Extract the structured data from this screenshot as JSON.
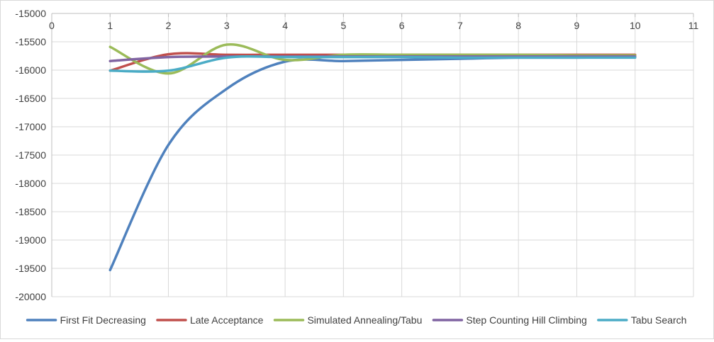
{
  "chart_data": {
    "type": "line",
    "title": "",
    "xlabel": "",
    "ylabel": "",
    "xlim": [
      0,
      11
    ],
    "ylim": [
      -20000,
      -15000
    ],
    "x_ticks": [
      0,
      1,
      2,
      3,
      4,
      5,
      6,
      7,
      8,
      9,
      10,
      11
    ],
    "y_ticks": [
      -15000,
      -15500,
      -16000,
      -16500,
      -17000,
      -17500,
      -18000,
      -18500,
      -19000,
      -19500,
      -20000
    ],
    "x_tick_labels": [
      "0",
      "1",
      "2",
      "3",
      "4",
      "5",
      "6",
      "7",
      "8",
      "9",
      "10",
      "11"
    ],
    "y_tick_labels": [
      "-15000",
      "-15500",
      "-16000",
      "-16500",
      "-17000",
      "-17500",
      "-18000",
      "-18500",
      "-19000",
      "-19500",
      "-20000"
    ],
    "grid": true,
    "smoothed": true,
    "legend_position": "bottom",
    "x": [
      1,
      2,
      3,
      4,
      5,
      6,
      7,
      8,
      9,
      10
    ],
    "series": [
      {
        "name": "First Fit Decreasing",
        "color": "#4f81bd",
        "values": [
          -19530,
          -17320,
          -16330,
          -15850,
          -15840,
          -15820,
          -15800,
          -15780,
          -15780,
          -15770
        ]
      },
      {
        "name": "Late Acceptance",
        "color": "#c0504d",
        "values": [
          -16010,
          -15720,
          -15730,
          -15730,
          -15730,
          -15730,
          -15730,
          -15730,
          -15730,
          -15730
        ]
      },
      {
        "name": "Simulated Annealing/Tabu",
        "color": "#9bbb59",
        "values": [
          -15590,
          -16060,
          -15550,
          -15820,
          -15730,
          -15730,
          -15730,
          -15730,
          -15740,
          -15740
        ]
      },
      {
        "name": "Step Counting Hill Climbing",
        "color": "#8064a2",
        "values": [
          -15840,
          -15770,
          -15760,
          -15760,
          -15760,
          -15760,
          -15760,
          -15760,
          -15760,
          -15760
        ]
      },
      {
        "name": "Tabu Search",
        "color": "#4bacc6",
        "values": [
          -16010,
          -16010,
          -15780,
          -15770,
          -15770,
          -15770,
          -15780,
          -15780,
          -15780,
          -15780
        ]
      }
    ]
  }
}
